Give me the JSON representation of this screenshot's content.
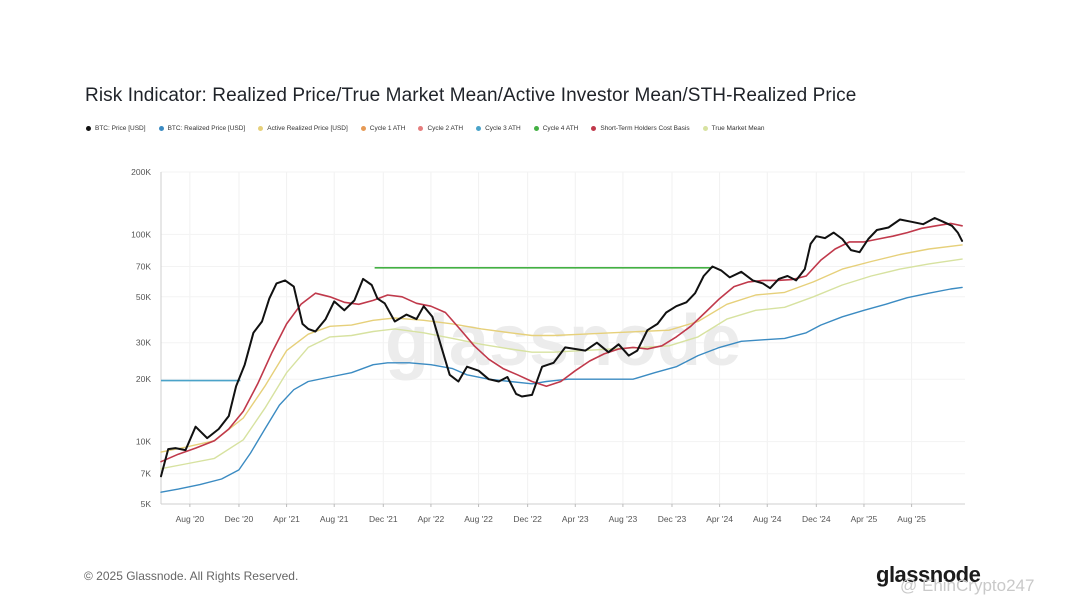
{
  "page": {
    "copyright": "© 2025 Glassnode. All Rights Reserved.",
    "brand": "glassnode",
    "handle": "@ EhinCrypto247"
  },
  "colors": {
    "btc_price": "#111111",
    "realized_price": "#3b8bc2",
    "active_realized": "#e6d07a",
    "cycle1": "#e69a55",
    "cycle2": "#e57d7d",
    "cycle3": "#4aa3c9",
    "cycle4": "#43b043",
    "sth": "#c0394b",
    "true_mean": "#d7e2a0"
  },
  "chart_data": {
    "type": "line",
    "title": "Risk Indicator: Realized Price/True Market Mean/Active Investor Mean/STH-Realized Price",
    "yscale": "log",
    "ylim": [
      5000,
      200000
    ],
    "xlim": [
      2020.38,
      2025.95
    ],
    "y_ticks": [
      {
        "value": 5000,
        "label": "5K"
      },
      {
        "value": 7000,
        "label": "7K"
      },
      {
        "value": 10000,
        "label": "10K"
      },
      {
        "value": 20000,
        "label": "20K"
      },
      {
        "value": 30000,
        "label": "30K"
      },
      {
        "value": 50000,
        "label": "50K"
      },
      {
        "value": 70000,
        "label": "70K"
      },
      {
        "value": 100000,
        "label": "100K"
      },
      {
        "value": 200000,
        "label": "200K"
      }
    ],
    "x_ticks": [
      {
        "value": 2020.58,
        "label": "Aug '20"
      },
      {
        "value": 2020.92,
        "label": "Dec '20"
      },
      {
        "value": 2021.25,
        "label": "Apr '21"
      },
      {
        "value": 2021.58,
        "label": "Aug '21"
      },
      {
        "value": 2021.92,
        "label": "Dec '21"
      },
      {
        "value": 2022.25,
        "label": "Apr '22"
      },
      {
        "value": 2022.58,
        "label": "Aug '22"
      },
      {
        "value": 2022.92,
        "label": "Dec '22"
      },
      {
        "value": 2023.25,
        "label": "Apr '23"
      },
      {
        "value": 2023.58,
        "label": "Aug '23"
      },
      {
        "value": 2023.92,
        "label": "Dec '23"
      },
      {
        "value": 2024.25,
        "label": "Apr '24"
      },
      {
        "value": 2024.58,
        "label": "Aug '24"
      },
      {
        "value": 2024.92,
        "label": "Dec '24"
      },
      {
        "value": 2025.25,
        "label": "Apr '25"
      },
      {
        "value": 2025.58,
        "label": "Aug '25"
      }
    ],
    "legend": [
      {
        "key": "btc_price",
        "label": "BTC: Price [USD]"
      },
      {
        "key": "realized_price",
        "label": "BTC: Realized Price [USD]"
      },
      {
        "key": "active_realized",
        "label": "Active Realized Price [USD]"
      },
      {
        "key": "cycle1",
        "label": "Cycle 1 ATH"
      },
      {
        "key": "cycle2",
        "label": "Cycle 2 ATH"
      },
      {
        "key": "cycle3",
        "label": "Cycle 3 ATH"
      },
      {
        "key": "cycle4",
        "label": "Cycle 4 ATH"
      },
      {
        "key": "sth",
        "label": "Short-Term Holders Cost Basis"
      },
      {
        "key": "true_mean",
        "label": "True Market Mean"
      }
    ],
    "series": [
      {
        "key": "btc_price",
        "name": "BTC: Price [USD]",
        "width": 2.0,
        "x": [
          2020.38,
          2020.43,
          2020.48,
          2020.55,
          2020.62,
          2020.7,
          2020.78,
          2020.85,
          2020.9,
          2020.96,
          2021.02,
          2021.08,
          2021.13,
          2021.18,
          2021.24,
          2021.3,
          2021.36,
          2021.4,
          2021.45,
          2021.52,
          2021.58,
          2021.65,
          2021.72,
          2021.78,
          2021.84,
          2021.88,
          2021.93,
          2022.0,
          2022.08,
          2022.15,
          2022.2,
          2022.26,
          2022.32,
          2022.38,
          2022.44,
          2022.5,
          2022.58,
          2022.65,
          2022.72,
          2022.78,
          2022.84,
          2022.88,
          2022.95,
          2023.02,
          2023.1,
          2023.18,
          2023.25,
          2023.32,
          2023.4,
          2023.48,
          2023.55,
          2023.62,
          2023.68,
          2023.75,
          2023.82,
          2023.88,
          2023.95,
          2024.02,
          2024.08,
          2024.14,
          2024.2,
          2024.26,
          2024.32,
          2024.4,
          2024.48,
          2024.55,
          2024.6,
          2024.66,
          2024.72,
          2024.78,
          2024.84,
          2024.88,
          2024.92,
          2024.98,
          2025.04,
          2025.1,
          2025.16,
          2025.22,
          2025.28,
          2025.34,
          2025.42,
          2025.5,
          2025.58,
          2025.66,
          2025.74,
          2025.8,
          2025.86,
          2025.9,
          2025.93
        ],
        "y": [
          6800,
          9200,
          9300,
          9100,
          11800,
          10400,
          11500,
          13300,
          18500,
          23500,
          33500,
          38000,
          49000,
          58000,
          60000,
          56000,
          37000,
          35000,
          34000,
          39000,
          47500,
          43000,
          48000,
          61000,
          57000,
          49000,
          46500,
          38000,
          41000,
          39000,
          45000,
          40000,
          29000,
          21000,
          19500,
          23000,
          22000,
          20000,
          19500,
          20500,
          17000,
          16500,
          16800,
          23000,
          24000,
          28500,
          28000,
          27500,
          30000,
          27000,
          29500,
          26000,
          27500,
          34500,
          37000,
          42000,
          45000,
          47000,
          52000,
          63000,
          70000,
          67000,
          62000,
          66000,
          60000,
          58000,
          55000,
          61000,
          63000,
          60000,
          68000,
          90000,
          98000,
          96000,
          102000,
          95000,
          84000,
          82000,
          95000,
          105000,
          108000,
          118000,
          115000,
          112000,
          120000,
          115000,
          110000,
          102000,
          93000
        ]
      },
      {
        "key": "sth",
        "name": "Short-Term Holders Cost Basis",
        "width": 1.6,
        "x": [
          2020.38,
          2020.5,
          2020.62,
          2020.75,
          2020.85,
          2020.95,
          2021.05,
          2021.15,
          2021.25,
          2021.35,
          2021.45,
          2021.55,
          2021.65,
          2021.75,
          2021.85,
          2021.95,
          2022.05,
          2022.15,
          2022.25,
          2022.35,
          2022.45,
          2022.55,
          2022.65,
          2022.75,
          2022.85,
          2022.95,
          2023.05,
          2023.15,
          2023.25,
          2023.35,
          2023.45,
          2023.55,
          2023.65,
          2023.75,
          2023.85,
          2023.95,
          2024.05,
          2024.15,
          2024.25,
          2024.35,
          2024.45,
          2024.55,
          2024.65,
          2024.75,
          2024.85,
          2024.95,
          2025.05,
          2025.15,
          2025.25,
          2025.35,
          2025.45,
          2025.55,
          2025.65,
          2025.75,
          2025.85,
          2025.93
        ],
        "y": [
          8000,
          8700,
          9300,
          10100,
          11500,
          14000,
          19000,
          27000,
          37000,
          46000,
          52000,
          50000,
          47000,
          46000,
          48000,
          51000,
          50000,
          46500,
          45000,
          42000,
          35000,
          29000,
          25000,
          22500,
          21000,
          19500,
          18500,
          19500,
          22000,
          24500,
          26500,
          28000,
          28500,
          28000,
          29000,
          32000,
          36000,
          42000,
          49000,
          56000,
          59000,
          60000,
          60000,
          60500,
          63000,
          75000,
          85000,
          92000,
          92000,
          95000,
          98000,
          102000,
          107000,
          110000,
          113000,
          110000
        ]
      },
      {
        "key": "active_realized",
        "name": "Active Realized Price [USD]",
        "width": 1.4,
        "x": [
          2020.38,
          2020.55,
          2020.75,
          2020.95,
          2021.1,
          2021.25,
          2021.4,
          2021.55,
          2021.7,
          2021.85,
          2022.0,
          2022.2,
          2022.4,
          2022.6,
          2022.8,
          2022.95,
          2023.1,
          2023.3,
          2023.5,
          2023.7,
          2023.9,
          2024.1,
          2024.3,
          2024.5,
          2024.7,
          2024.9,
          2025.1,
          2025.3,
          2025.5,
          2025.7,
          2025.93
        ],
        "y": [
          8900,
          9400,
          10100,
          13000,
          18500,
          27500,
          33000,
          36000,
          36500,
          38500,
          39500,
          38500,
          37000,
          35000,
          33500,
          32500,
          32500,
          33000,
          33500,
          34000,
          34500,
          38000,
          46000,
          51000,
          52500,
          59000,
          68000,
          74000,
          80000,
          85000,
          89000
        ]
      },
      {
        "key": "true_mean",
        "name": "True Market Mean",
        "width": 1.4,
        "x": [
          2020.38,
          2020.55,
          2020.75,
          2020.95,
          2021.1,
          2021.25,
          2021.4,
          2021.55,
          2021.7,
          2021.85,
          2022.0,
          2022.2,
          2022.4,
          2022.6,
          2022.8,
          2022.95,
          2023.1,
          2023.3,
          2023.5,
          2023.7,
          2023.9,
          2024.1,
          2024.3,
          2024.5,
          2024.7,
          2024.9,
          2025.1,
          2025.3,
          2025.5,
          2025.7,
          2025.93
        ],
        "y": [
          7400,
          7800,
          8300,
          10200,
          14500,
          21500,
          28500,
          32000,
          32500,
          34000,
          35000,
          33500,
          31500,
          29500,
          28000,
          27000,
          27000,
          27500,
          28000,
          28500,
          29000,
          32000,
          39000,
          43000,
          44500,
          50000,
          57000,
          63000,
          68000,
          72000,
          76000
        ]
      },
      {
        "key": "realized_price",
        "name": "BTC: Realized Price [USD]",
        "width": 1.4,
        "x": [
          2020.38,
          2020.5,
          2020.65,
          2020.8,
          2020.92,
          2021.0,
          2021.1,
          2021.2,
          2021.3,
          2021.4,
          2021.55,
          2021.7,
          2021.85,
          2021.95,
          2022.1,
          2022.25,
          2022.4,
          2022.5,
          2022.65,
          2022.8,
          2022.95,
          2023.05,
          2023.2,
          2023.35,
          2023.5,
          2023.65,
          2023.8,
          2023.95,
          2024.1,
          2024.25,
          2024.4,
          2024.55,
          2024.7,
          2024.85,
          2024.95,
          2025.1,
          2025.25,
          2025.4,
          2025.55,
          2025.7,
          2025.85,
          2025.93
        ],
        "y": [
          5700,
          5900,
          6200,
          6600,
          7300,
          8800,
          11500,
          15000,
          17800,
          19500,
          20500,
          21500,
          23500,
          24000,
          24000,
          23500,
          22500,
          21000,
          20000,
          19500,
          19000,
          19500,
          20000,
          20000,
          20000,
          20000,
          21500,
          23000,
          26000,
          28500,
          30500,
          31000,
          31500,
          33500,
          36500,
          40000,
          43000,
          46000,
          49500,
          52000,
          54500,
          55500
        ]
      }
    ],
    "hlines": [
      {
        "key": "cycle3",
        "name": "Cycle 3 ATH",
        "value": 19700,
        "x_start": 2020.38,
        "x_end": 2020.93
      },
      {
        "key": "cycle4",
        "name": "Cycle 4 ATH",
        "value": 69000,
        "x_start": 2021.86,
        "x_end": 2024.2
      }
    ],
    "watermark": "glassnode"
  }
}
